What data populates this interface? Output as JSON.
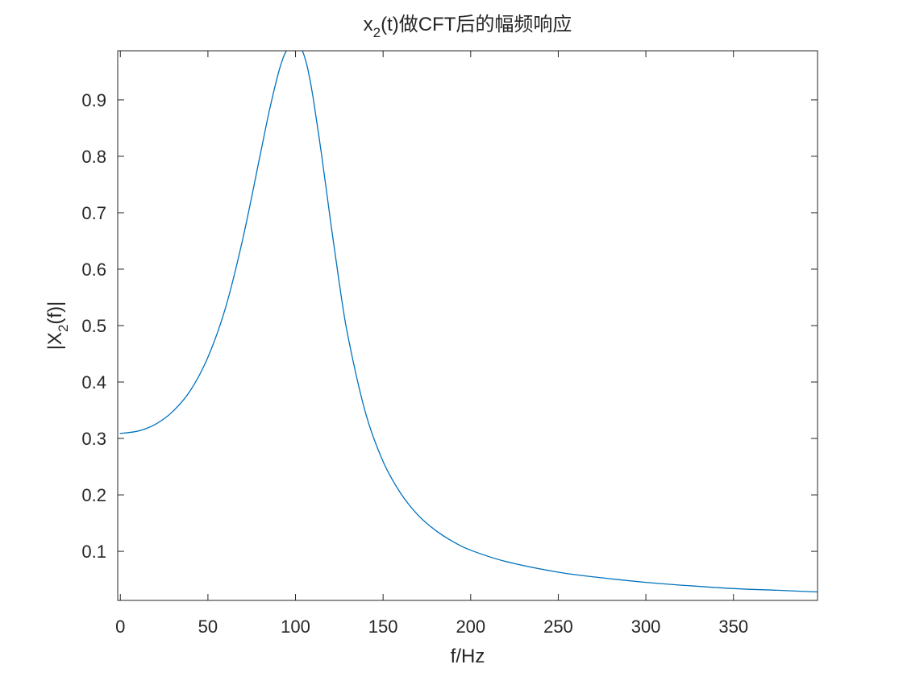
{
  "chart_data": {
    "type": "line",
    "title": {
      "prefix": "x",
      "subscript": "2",
      "suffix": "(t)做CFT后的幅频响应"
    },
    "xlabel": "f/Hz",
    "ylabel": {
      "prefix": "|X",
      "subscript": "2",
      "suffix": "(f)|"
    },
    "xlim": [
      -1.5,
      398
    ],
    "ylim": [
      0.013,
      0.987
    ],
    "xticks": [
      0,
      50,
      100,
      150,
      200,
      250,
      300,
      350
    ],
    "xtick_labels": [
      "0",
      "50",
      "100",
      "150",
      "200",
      "250",
      "300",
      "350"
    ],
    "yticks": [
      0.1,
      0.2,
      0.3,
      0.4,
      0.5,
      0.6,
      0.7,
      0.8,
      0.9
    ],
    "ytick_labels": [
      "0.1",
      "0.2",
      "0.3",
      "0.4",
      "0.5",
      "0.6",
      "0.7",
      "0.8",
      "0.9"
    ],
    "grid": false,
    "legend": "none",
    "series": [
      {
        "name": "|X2(f)|",
        "color": "#0072BD",
        "x": [
          0,
          10,
          20,
          30,
          40,
          50,
          60,
          70,
          80,
          85,
          90,
          93,
          95,
          97,
          98,
          99,
          100,
          101,
          102,
          103,
          105,
          107,
          110,
          115,
          120,
          125,
          130,
          140,
          150,
          160,
          170,
          180,
          190,
          200,
          220,
          250,
          275,
          300,
          325,
          350,
          375,
          398
        ],
        "y": [
          0.309,
          0.313,
          0.325,
          0.348,
          0.385,
          0.444,
          0.531,
          0.655,
          0.805,
          0.88,
          0.945,
          0.975,
          0.988,
          0.995,
          0.998,
          0.999,
          1.0,
          0.999,
          0.997,
          0.993,
          0.978,
          0.955,
          0.905,
          0.8,
          0.685,
          0.575,
          0.48,
          0.345,
          0.259,
          0.203,
          0.164,
          0.137,
          0.117,
          0.102,
          0.082,
          0.063,
          0.053,
          0.045,
          0.039,
          0.034,
          0.031,
          0.028
        ]
      }
    ]
  }
}
